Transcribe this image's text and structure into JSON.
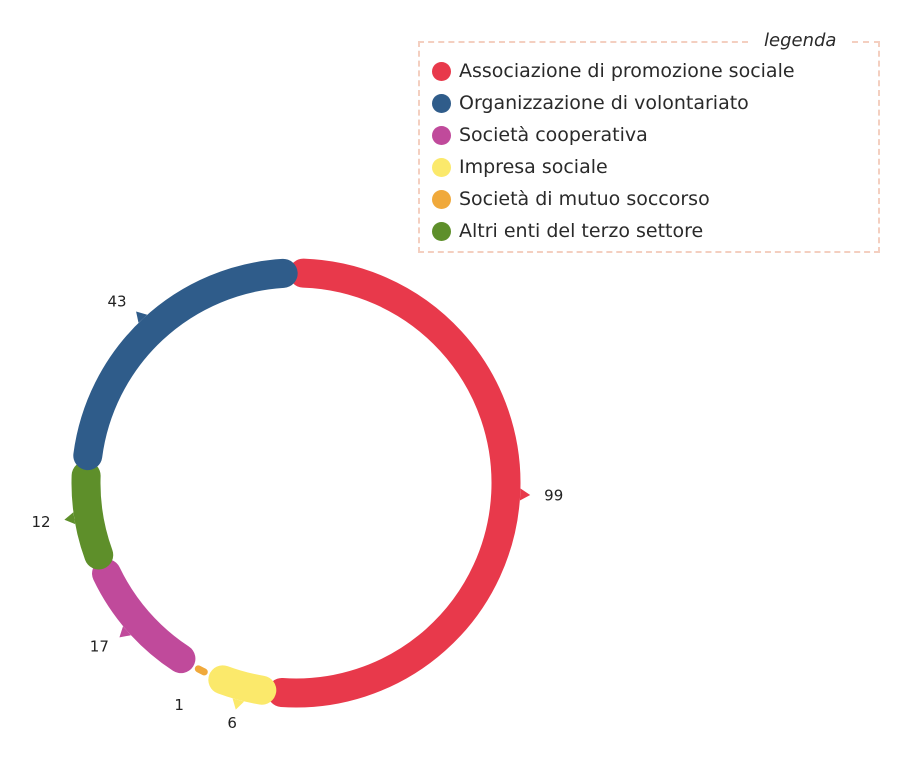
{
  "legend": {
    "title": "legenda"
  },
  "chart_data": {
    "type": "pie",
    "categories": [
      "Associazione di promozione sociale",
      "Organizzazione di volontariato",
      "Società cooperativa",
      "Impresa sociale",
      "Società di mutuo soccorso",
      "Altri enti del terzo settore"
    ],
    "values": [
      99,
      43,
      17,
      6,
      1,
      12
    ],
    "colors": [
      "#e8394b",
      "#2f5c8a",
      "#c04a9b",
      "#fbe96b",
      "#f0a93b",
      "#5e8f2a"
    ],
    "data_labels": [
      "99",
      "43",
      "17",
      "6",
      "1",
      "12"
    ],
    "legend_position": "top-right",
    "title": ""
  }
}
